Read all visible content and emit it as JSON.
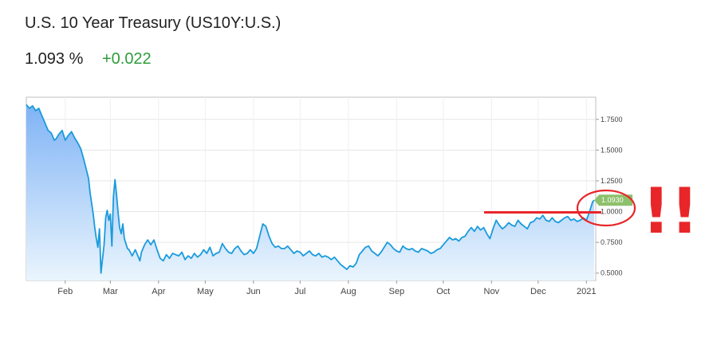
{
  "header": {
    "title": "U.S. 10 Year Treasury (US10Y:U.S.)",
    "price": "1.093 %",
    "change": "+0.022"
  },
  "colors": {
    "line": "#1a9bdc",
    "area_top": "#7fb3f5",
    "area_bottom": "#eaf5fd",
    "change": "#2e9d3a",
    "flag": "#8dc06b",
    "annotation": "#e8262a"
  },
  "annotation": {
    "marks": "!!"
  },
  "chart_data": {
    "type": "area",
    "ylim": [
      0.44,
      1.93
    ],
    "y_ticks": [
      "1.7500",
      "1.5000",
      "1.2500",
      "1.0000",
      "0.7500",
      "0.5000"
    ],
    "y_tick_values": [
      1.75,
      1.5,
      1.25,
      1.0,
      0.75,
      0.5
    ],
    "x_ticks": [
      "Feb",
      "Mar",
      "Apr",
      "May",
      "Jun",
      "Jul",
      "Aug",
      "Sep",
      "Oct",
      "Nov",
      "Dec",
      "2021"
    ],
    "x_tick_days": [
      31,
      60,
      91,
      121,
      152,
      182,
      213,
      244,
      274,
      305,
      335,
      366
    ],
    "xlim_days": [
      6,
      372
    ],
    "last_value_label": "1.0930",
    "reference_level": 1.0,
    "series": [
      {
        "points": [
          [
            6,
            1.87
          ],
          [
            8,
            1.84
          ],
          [
            10,
            1.86
          ],
          [
            12,
            1.82
          ],
          [
            14,
            1.84
          ],
          [
            16,
            1.78
          ],
          [
            18,
            1.72
          ],
          [
            20,
            1.66
          ],
          [
            22,
            1.64
          ],
          [
            24,
            1.58
          ],
          [
            25,
            1.59
          ],
          [
            27,
            1.63
          ],
          [
            29,
            1.66
          ],
          [
            31,
            1.58
          ],
          [
            33,
            1.62
          ],
          [
            35,
            1.65
          ],
          [
            37,
            1.6
          ],
          [
            39,
            1.56
          ],
          [
            41,
            1.51
          ],
          [
            43,
            1.42
          ],
          [
            45,
            1.32
          ],
          [
            46,
            1.27
          ],
          [
            47,
            1.15
          ],
          [
            49,
            0.98
          ],
          [
            50,
            0.87
          ],
          [
            51,
            0.78
          ],
          [
            52,
            0.71
          ],
          [
            53,
            0.86
          ],
          [
            54,
            0.5
          ],
          [
            56,
            0.73
          ],
          [
            57,
            0.95
          ],
          [
            58,
            1.01
          ],
          [
            59,
            0.93
          ],
          [
            60,
            0.98
          ],
          [
            61,
            0.72
          ],
          [
            62,
            1.12
          ],
          [
            63,
            1.26
          ],
          [
            64,
            1.14
          ],
          [
            65,
            0.99
          ],
          [
            66,
            0.87
          ],
          [
            67,
            0.82
          ],
          [
            68,
            0.9
          ],
          [
            69,
            0.78
          ],
          [
            70,
            0.74
          ],
          [
            71,
            0.7
          ],
          [
            72,
            0.69
          ],
          [
            74,
            0.64
          ],
          [
            76,
            0.69
          ],
          [
            78,
            0.63
          ],
          [
            79,
            0.6
          ],
          [
            80,
            0.67
          ],
          [
            82,
            0.73
          ],
          [
            84,
            0.77
          ],
          [
            86,
            0.73
          ],
          [
            88,
            0.77
          ],
          [
            90,
            0.69
          ],
          [
            92,
            0.62
          ],
          [
            94,
            0.6
          ],
          [
            96,
            0.65
          ],
          [
            98,
            0.62
          ],
          [
            100,
            0.66
          ],
          [
            102,
            0.65
          ],
          [
            104,
            0.64
          ],
          [
            106,
            0.67
          ],
          [
            108,
            0.61
          ],
          [
            110,
            0.64
          ],
          [
            112,
            0.62
          ],
          [
            114,
            0.66
          ],
          [
            116,
            0.63
          ],
          [
            118,
            0.65
          ],
          [
            120,
            0.69
          ],
          [
            122,
            0.66
          ],
          [
            124,
            0.71
          ],
          [
            126,
            0.64
          ],
          [
            128,
            0.66
          ],
          [
            130,
            0.67
          ],
          [
            132,
            0.74
          ],
          [
            134,
            0.7
          ],
          [
            136,
            0.67
          ],
          [
            138,
            0.66
          ],
          [
            140,
            0.7
          ],
          [
            142,
            0.72
          ],
          [
            144,
            0.68
          ],
          [
            146,
            0.65
          ],
          [
            148,
            0.66
          ],
          [
            150,
            0.69
          ],
          [
            152,
            0.66
          ],
          [
            154,
            0.7
          ],
          [
            156,
            0.8
          ],
          [
            158,
            0.9
          ],
          [
            160,
            0.88
          ],
          [
            162,
            0.8
          ],
          [
            164,
            0.74
          ],
          [
            166,
            0.71
          ],
          [
            168,
            0.72
          ],
          [
            170,
            0.7
          ],
          [
            172,
            0.7
          ],
          [
            174,
            0.72
          ],
          [
            176,
            0.69
          ],
          [
            178,
            0.66
          ],
          [
            180,
            0.68
          ],
          [
            182,
            0.67
          ],
          [
            184,
            0.64
          ],
          [
            186,
            0.66
          ],
          [
            188,
            0.68
          ],
          [
            190,
            0.65
          ],
          [
            192,
            0.64
          ],
          [
            194,
            0.66
          ],
          [
            196,
            0.63
          ],
          [
            198,
            0.64
          ],
          [
            200,
            0.63
          ],
          [
            202,
            0.61
          ],
          [
            204,
            0.63
          ],
          [
            206,
            0.6
          ],
          [
            208,
            0.57
          ],
          [
            210,
            0.55
          ],
          [
            212,
            0.53
          ],
          [
            214,
            0.56
          ],
          [
            216,
            0.55
          ],
          [
            218,
            0.58
          ],
          [
            220,
            0.65
          ],
          [
            222,
            0.68
          ],
          [
            224,
            0.71
          ],
          [
            226,
            0.72
          ],
          [
            228,
            0.68
          ],
          [
            230,
            0.66
          ],
          [
            232,
            0.64
          ],
          [
            234,
            0.67
          ],
          [
            236,
            0.71
          ],
          [
            238,
            0.75
          ],
          [
            240,
            0.73
          ],
          [
            242,
            0.7
          ],
          [
            244,
            0.68
          ],
          [
            246,
            0.67
          ],
          [
            248,
            0.72
          ],
          [
            250,
            0.7
          ],
          [
            252,
            0.69
          ],
          [
            254,
            0.7
          ],
          [
            256,
            0.68
          ],
          [
            258,
            0.67
          ],
          [
            260,
            0.7
          ],
          [
            262,
            0.69
          ],
          [
            264,
            0.68
          ],
          [
            266,
            0.66
          ],
          [
            268,
            0.67
          ],
          [
            270,
            0.69
          ],
          [
            272,
            0.7
          ],
          [
            274,
            0.73
          ],
          [
            276,
            0.76
          ],
          [
            278,
            0.79
          ],
          [
            280,
            0.77
          ],
          [
            282,
            0.78
          ],
          [
            284,
            0.76
          ],
          [
            286,
            0.79
          ],
          [
            288,
            0.8
          ],
          [
            290,
            0.84
          ],
          [
            292,
            0.87
          ],
          [
            294,
            0.84
          ],
          [
            296,
            0.88
          ],
          [
            298,
            0.85
          ],
          [
            300,
            0.87
          ],
          [
            302,
            0.82
          ],
          [
            304,
            0.78
          ],
          [
            306,
            0.86
          ],
          [
            308,
            0.93
          ],
          [
            310,
            0.89
          ],
          [
            312,
            0.86
          ],
          [
            314,
            0.88
          ],
          [
            316,
            0.91
          ],
          [
            318,
            0.89
          ],
          [
            320,
            0.88
          ],
          [
            322,
            0.93
          ],
          [
            324,
            0.9
          ],
          [
            326,
            0.88
          ],
          [
            328,
            0.86
          ],
          [
            330,
            0.91
          ],
          [
            332,
            0.92
          ],
          [
            334,
            0.95
          ],
          [
            336,
            0.94
          ],
          [
            338,
            0.97
          ],
          [
            340,
            0.93
          ],
          [
            342,
            0.92
          ],
          [
            344,
            0.95
          ],
          [
            346,
            0.92
          ],
          [
            348,
            0.91
          ],
          [
            350,
            0.93
          ],
          [
            352,
            0.95
          ],
          [
            354,
            0.96
          ],
          [
            356,
            0.93
          ],
          [
            358,
            0.94
          ],
          [
            360,
            0.92
          ],
          [
            362,
            0.93
          ],
          [
            364,
            0.95
          ],
          [
            366,
            0.93
          ],
          [
            368,
            1.0
          ],
          [
            370,
            1.08
          ],
          [
            371,
            1.093
          ]
        ]
      }
    ]
  }
}
